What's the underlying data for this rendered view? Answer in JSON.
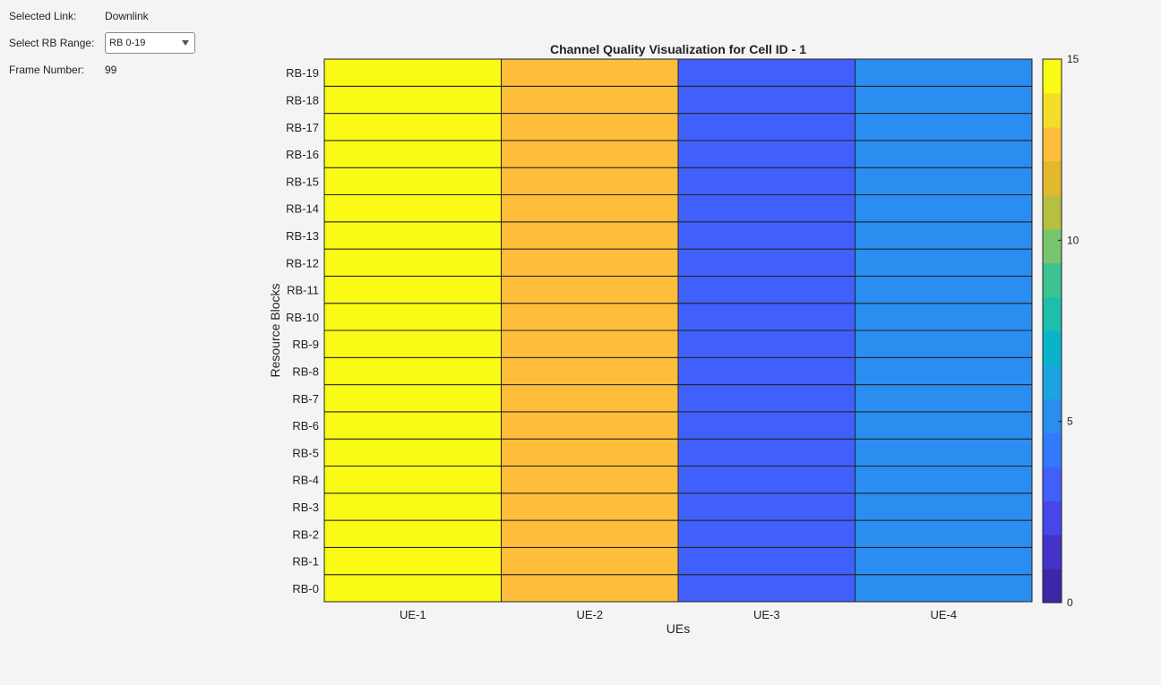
{
  "controls": {
    "selected_link_label": "Selected Link:",
    "selected_link_value": "Downlink",
    "rb_range_label": "Select RB Range:",
    "rb_range_value": "RB 0-19",
    "frame_number_label": "Frame Number:",
    "frame_number_value": "99"
  },
  "chart_data": {
    "type": "heatmap",
    "title": "Channel  Quality Visualization for Cell ID - 1",
    "xlabel": "UEs",
    "ylabel": "Resource Blocks",
    "x_categories": [
      "UE-1",
      "UE-2",
      "UE-3",
      "UE-4"
    ],
    "y_categories": [
      "RB-0",
      "RB-1",
      "RB-2",
      "RB-3",
      "RB-4",
      "RB-5",
      "RB-6",
      "RB-7",
      "RB-8",
      "RB-9",
      "RB-10",
      "RB-11",
      "RB-12",
      "RB-13",
      "RB-14",
      "RB-15",
      "RB-16",
      "RB-17",
      "RB-18",
      "RB-19"
    ],
    "values": [
      [
        15,
        13,
        3,
        5
      ],
      [
        15,
        13,
        3,
        5
      ],
      [
        15,
        13,
        3,
        5
      ],
      [
        15,
        13,
        3,
        5
      ],
      [
        15,
        13,
        3,
        5
      ],
      [
        15,
        13,
        3,
        5
      ],
      [
        15,
        13,
        3,
        5
      ],
      [
        15,
        13,
        3,
        5
      ],
      [
        15,
        13,
        3,
        5
      ],
      [
        15,
        13,
        3,
        5
      ],
      [
        15,
        13,
        3,
        5
      ],
      [
        15,
        13,
        3,
        5
      ],
      [
        15,
        13,
        3,
        5
      ],
      [
        15,
        13,
        3,
        5
      ],
      [
        15,
        13,
        3,
        5
      ],
      [
        15,
        13,
        3,
        5
      ],
      [
        15,
        13,
        3,
        5
      ],
      [
        15,
        13,
        3,
        5
      ],
      [
        15,
        13,
        3,
        5
      ],
      [
        15,
        13,
        3,
        5
      ]
    ],
    "colorbar": {
      "range": [
        0,
        15
      ],
      "ticks": [
        "0",
        "5",
        "10",
        "15"
      ],
      "colors": [
        "#3e26a8",
        "#4433c9",
        "#4746e8",
        "#4160fb",
        "#3379fd",
        "#2a8ef0",
        "#1ca3e1",
        "#09b4c9",
        "#1fbdac",
        "#3ec392",
        "#79c46e",
        "#b6c040",
        "#e2b82c",
        "#febe3c",
        "#f4dd29",
        "#f9fb15"
      ]
    }
  }
}
